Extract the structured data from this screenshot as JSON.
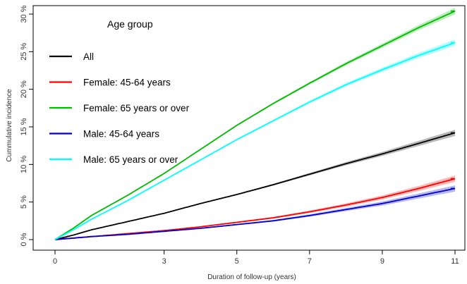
{
  "chart_data": {
    "type": "line",
    "xlabel": "Duration of follow-up (years)",
    "ylabel": "Cummulative incidence",
    "xlim": [
      0,
      11
    ],
    "ylim": [
      0,
      30
    ],
    "x_ticks": [
      0,
      3,
      5,
      7,
      9,
      11
    ],
    "y_ticks": [
      {
        "value": 0,
        "label": "0 %"
      },
      {
        "value": 5,
        "label": "5 %"
      },
      {
        "value": 10,
        "label": "10 %"
      },
      {
        "value": 15,
        "label": "15 %"
      },
      {
        "value": 20,
        "label": "20 %"
      },
      {
        "value": 25,
        "label": "25 %"
      },
      {
        "value": 30,
        "label": "30 %"
      }
    ],
    "grid": false,
    "has_confidence_bands": true,
    "legend": {
      "title": "Age group",
      "placement": "top-left"
    },
    "series": [
      {
        "name": "All",
        "color": "#000000",
        "x": [
          0,
          0.5,
          1,
          2,
          3,
          4,
          5,
          6,
          7,
          8,
          9,
          10,
          11
        ],
        "y": [
          0,
          0.6,
          1.3,
          2.4,
          3.5,
          4.8,
          6.0,
          7.3,
          8.7,
          10.1,
          11.4,
          12.8,
          14.2
        ]
      },
      {
        "name": "Female: 45-64 years",
        "color": "#ff0000",
        "x": [
          0,
          1,
          2,
          3,
          4,
          5,
          6,
          7,
          8,
          9,
          10,
          11
        ],
        "y": [
          0,
          0.4,
          0.8,
          1.2,
          1.7,
          2.3,
          2.9,
          3.7,
          4.6,
          5.6,
          6.8,
          8.1
        ]
      },
      {
        "name": "Female: 65 years or over",
        "color": "#00bb00",
        "x": [
          0,
          0.5,
          1,
          2,
          3,
          4,
          5,
          6,
          7,
          8,
          9,
          10,
          11
        ],
        "y": [
          0,
          1.5,
          3.2,
          5.9,
          8.8,
          12.0,
          15.2,
          18.1,
          20.8,
          23.4,
          25.8,
          28.2,
          30.4
        ]
      },
      {
        "name": "Male: 45-64 years",
        "color": "#0000cc",
        "x": [
          0,
          1,
          2,
          3,
          4,
          5,
          6,
          7,
          8,
          9,
          10,
          11
        ],
        "y": [
          0,
          0.4,
          0.7,
          1.1,
          1.5,
          2.0,
          2.5,
          3.2,
          4.0,
          4.8,
          5.8,
          6.8
        ]
      },
      {
        "name": "Male: 65 years or over",
        "color": "#00ffff",
        "x": [
          0,
          0.5,
          1,
          2,
          3,
          4,
          5,
          6,
          7,
          8,
          9,
          10,
          11
        ],
        "y": [
          0,
          1.3,
          2.7,
          5.2,
          7.9,
          10.6,
          13.3,
          15.8,
          18.3,
          20.6,
          22.6,
          24.5,
          26.2
        ]
      }
    ]
  }
}
